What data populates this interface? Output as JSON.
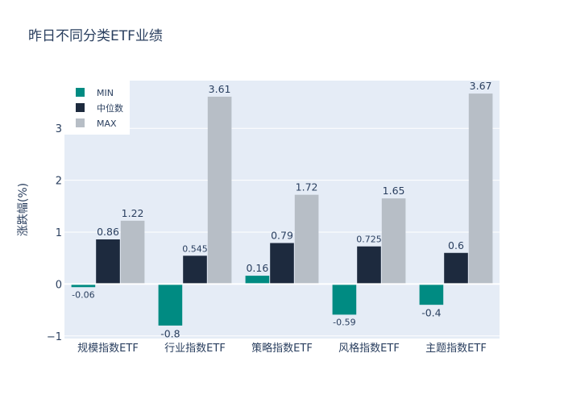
{
  "chart_data": {
    "type": "bar",
    "title": "昨日不同分类ETF业绩",
    "ylabel": "涨跌幅(%)",
    "xlabel": "",
    "categories": [
      "规模指数ETF",
      "行业指数ETF",
      "策略指数ETF",
      "风格指数ETF",
      "主题指数ETF"
    ],
    "series": [
      {
        "name": "MIN",
        "color": "#008b82",
        "values": [
          -0.06,
          -0.8,
          0.16,
          -0.59,
          -0.4
        ],
        "labels": [
          "-0.06",
          "-0.8",
          "0.16",
          "-0.59",
          "-0.4"
        ]
      },
      {
        "name": "中位数",
        "color": "#1d2a3e",
        "values": [
          0.86,
          0.545,
          0.79,
          0.725,
          0.6
        ],
        "labels": [
          "0.86",
          "0.545",
          "0.79",
          "0.725",
          "0.6"
        ]
      },
      {
        "name": "MAX",
        "color": "#b7bec6",
        "values": [
          1.22,
          3.61,
          1.72,
          1.65,
          3.67
        ],
        "labels": [
          "1.22",
          "3.61",
          "1.72",
          "1.65",
          "3.67"
        ]
      }
    ],
    "ylim": [
      -1.05,
      3.92
    ],
    "yticks": [
      -1,
      0,
      1,
      2,
      3
    ],
    "ytick_labels": [
      "−1",
      "0",
      "1",
      "2",
      "3"
    ],
    "grid": true,
    "legend_position": "top-left",
    "plot_background": "#e5ecf6"
  }
}
